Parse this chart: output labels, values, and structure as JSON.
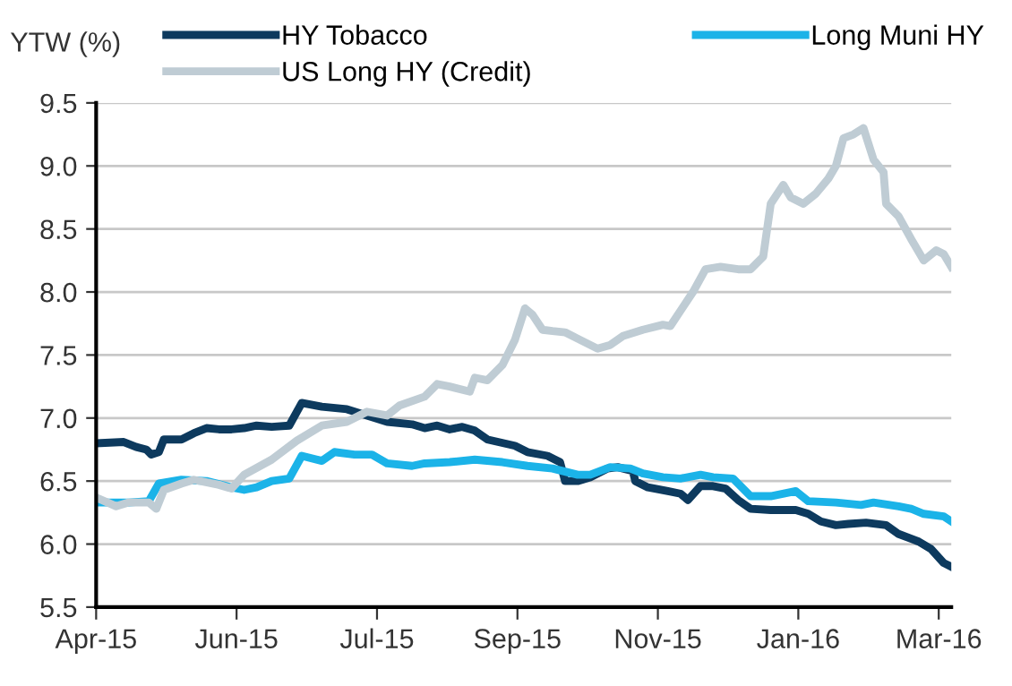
{
  "chart_data": {
    "type": "line",
    "ylabel": "YTW (%)",
    "xlim": [
      "2015-04-06",
      "2016-03-12"
    ],
    "xticks": [
      {
        "value": "2015-04-06",
        "label": "Apr-15"
      },
      {
        "value": "2015-06-01",
        "label": "Jun-15"
      },
      {
        "value": "2015-07-27",
        "label": "Jul-15"
      },
      {
        "value": "2015-09-21",
        "label": "Sep-15"
      },
      {
        "value": "2015-11-16",
        "label": "Nov-15"
      },
      {
        "value": "2016-01-11",
        "label": "Jan-16"
      },
      {
        "value": "2016-03-07",
        "label": "Mar-16"
      }
    ],
    "ylim": [
      5.5,
      9.5
    ],
    "yticks": [
      {
        "value": 5.5,
        "label": "5.5"
      },
      {
        "value": 6.0,
        "label": "6.0"
      },
      {
        "value": 6.5,
        "label": "6.5"
      },
      {
        "value": 7.0,
        "label": "7.0"
      },
      {
        "value": 7.5,
        "label": "7.5"
      },
      {
        "value": 8.0,
        "label": "8.0"
      },
      {
        "value": 8.5,
        "label": "8.5"
      },
      {
        "value": 9.0,
        "label": "9.0"
      },
      {
        "value": 9.5,
        "label": "9.5"
      }
    ],
    "grid": "y",
    "legend": "top",
    "marker": "none",
    "line_style": "solid",
    "series": [
      {
        "name": "HY Tobacco",
        "color": "#0d3a5e",
        "x": [
          "2015-04-06",
          "2015-04-17",
          "2015-04-22",
          "2015-04-26",
          "2015-04-28",
          "2015-05-01",
          "2015-05-03",
          "2015-05-10",
          "2015-05-15",
          "2015-05-20",
          "2015-05-25",
          "2015-05-30",
          "2015-06-04",
          "2015-06-09",
          "2015-06-15",
          "2015-06-22",
          "2015-06-27",
          "2015-07-05",
          "2015-07-15",
          "2015-07-23",
          "2015-07-31",
          "2015-08-10",
          "2015-08-15",
          "2015-08-20",
          "2015-08-25",
          "2015-08-30",
          "2015-09-04",
          "2015-09-09",
          "2015-09-20",
          "2015-09-25",
          "2015-10-03",
          "2015-10-08",
          "2015-10-10",
          "2015-10-15",
          "2015-10-20",
          "2015-10-27",
          "2015-10-31",
          "2015-11-06",
          "2015-11-07",
          "2015-11-12",
          "2015-11-20",
          "2015-11-25",
          "2015-11-28",
          "2015-12-03",
          "2015-12-08",
          "2015-12-13",
          "2015-12-18",
          "2015-12-23",
          "2015-12-31",
          "2016-01-10",
          "2016-01-15",
          "2016-01-20",
          "2016-01-26",
          "2016-01-31",
          "2016-02-07",
          "2016-02-15",
          "2016-02-20",
          "2016-02-28",
          "2016-03-04",
          "2016-03-09",
          "2016-03-12"
        ],
        "values": [
          6.8,
          6.81,
          6.77,
          6.75,
          6.71,
          6.73,
          6.83,
          6.83,
          6.88,
          6.92,
          6.91,
          6.91,
          6.92,
          6.94,
          6.93,
          6.94,
          7.12,
          7.09,
          7.07,
          7.02,
          6.97,
          6.95,
          6.92,
          6.94,
          6.91,
          6.93,
          6.9,
          6.83,
          6.78,
          6.73,
          6.7,
          6.65,
          6.5,
          6.5,
          6.53,
          6.6,
          6.61,
          6.58,
          6.5,
          6.45,
          6.42,
          6.4,
          6.35,
          6.46,
          6.46,
          6.44,
          6.35,
          6.28,
          6.27,
          6.27,
          6.24,
          6.18,
          6.15,
          6.16,
          6.17,
          6.15,
          6.08,
          6.02,
          5.96,
          5.85,
          5.82
        ]
      },
      {
        "name": "Long Muni HY",
        "color": "#1bb3e8",
        "x": [
          "2015-04-06",
          "2015-04-14",
          "2015-04-19",
          "2015-04-27",
          "2015-05-01",
          "2015-05-10",
          "2015-05-20",
          "2015-05-30",
          "2015-06-04",
          "2015-06-09",
          "2015-06-15",
          "2015-06-22",
          "2015-06-27",
          "2015-07-05",
          "2015-07-10",
          "2015-07-18",
          "2015-07-25",
          "2015-07-31",
          "2015-08-10",
          "2015-08-15",
          "2015-08-25",
          "2015-09-04",
          "2015-09-15",
          "2015-09-25",
          "2015-10-05",
          "2015-10-15",
          "2015-10-20",
          "2015-10-28",
          "2015-11-05",
          "2015-11-10",
          "2015-11-18",
          "2015-11-25",
          "2015-12-03",
          "2015-12-08",
          "2015-12-16",
          "2015-12-23",
          "2015-12-31",
          "2016-01-10",
          "2016-01-15",
          "2016-01-26",
          "2016-02-05",
          "2016-02-10",
          "2016-02-20",
          "2016-02-25",
          "2016-03-01",
          "2016-03-09",
          "2016-03-12"
        ],
        "values": [
          6.33,
          6.33,
          6.33,
          6.34,
          6.48,
          6.51,
          6.5,
          6.45,
          6.43,
          6.45,
          6.5,
          6.52,
          6.7,
          6.66,
          6.73,
          6.71,
          6.71,
          6.64,
          6.62,
          6.64,
          6.65,
          6.67,
          6.65,
          6.62,
          6.6,
          6.55,
          6.55,
          6.61,
          6.6,
          6.56,
          6.53,
          6.52,
          6.55,
          6.53,
          6.52,
          6.38,
          6.38,
          6.42,
          6.34,
          6.33,
          6.31,
          6.33,
          6.3,
          6.28,
          6.24,
          6.22,
          6.18
        ]
      },
      {
        "name": "US Long HY (Credit)",
        "color": "#bfccd4",
        "x": [
          "2015-04-06",
          "2015-04-14",
          "2015-04-19",
          "2015-04-27",
          "2015-04-30",
          "2015-05-03",
          "2015-05-10",
          "2015-05-15",
          "2015-05-25",
          "2015-05-30",
          "2015-06-04",
          "2015-06-15",
          "2015-06-25",
          "2015-07-05",
          "2015-07-15",
          "2015-07-23",
          "2015-07-31",
          "2015-08-05",
          "2015-08-15",
          "2015-08-20",
          "2015-08-25",
          "2015-09-02",
          "2015-09-04",
          "2015-09-09",
          "2015-09-15",
          "2015-09-20",
          "2015-09-24",
          "2015-09-27",
          "2015-10-01",
          "2015-10-05",
          "2015-10-10",
          "2015-10-15",
          "2015-10-23",
          "2015-10-28",
          "2015-11-02",
          "2015-11-10",
          "2015-11-18",
          "2015-11-21",
          "2015-11-25",
          "2015-11-30",
          "2015-12-05",
          "2015-12-11",
          "2015-12-18",
          "2015-12-23",
          "2015-12-28",
          "2015-12-31",
          "2016-01-05",
          "2016-01-08",
          "2016-01-13",
          "2016-01-18",
          "2016-01-23",
          "2016-01-26",
          "2016-01-29",
          "2016-02-02",
          "2016-02-06",
          "2016-02-10",
          "2016-02-14",
          "2016-02-15",
          "2016-02-20",
          "2016-02-25",
          "2016-03-01",
          "2016-03-06",
          "2016-03-09",
          "2016-03-12"
        ],
        "values": [
          6.37,
          6.3,
          6.33,
          6.33,
          6.28,
          6.43,
          6.48,
          6.51,
          6.47,
          6.44,
          6.55,
          6.67,
          6.82,
          6.94,
          6.97,
          7.05,
          7.02,
          7.1,
          7.17,
          7.27,
          7.25,
          7.21,
          7.32,
          7.3,
          7.42,
          7.62,
          7.87,
          7.82,
          7.7,
          7.69,
          7.68,
          7.63,
          7.55,
          7.58,
          7.65,
          7.7,
          7.74,
          7.73,
          7.85,
          8.0,
          8.18,
          8.2,
          8.18,
          8.18,
          8.28,
          8.7,
          8.85,
          8.75,
          8.7,
          8.78,
          8.9,
          9.0,
          9.22,
          9.25,
          9.3,
          9.05,
          8.95,
          8.7,
          8.6,
          8.42,
          8.25,
          8.33,
          8.3,
          8.2
        ]
      }
    ]
  }
}
